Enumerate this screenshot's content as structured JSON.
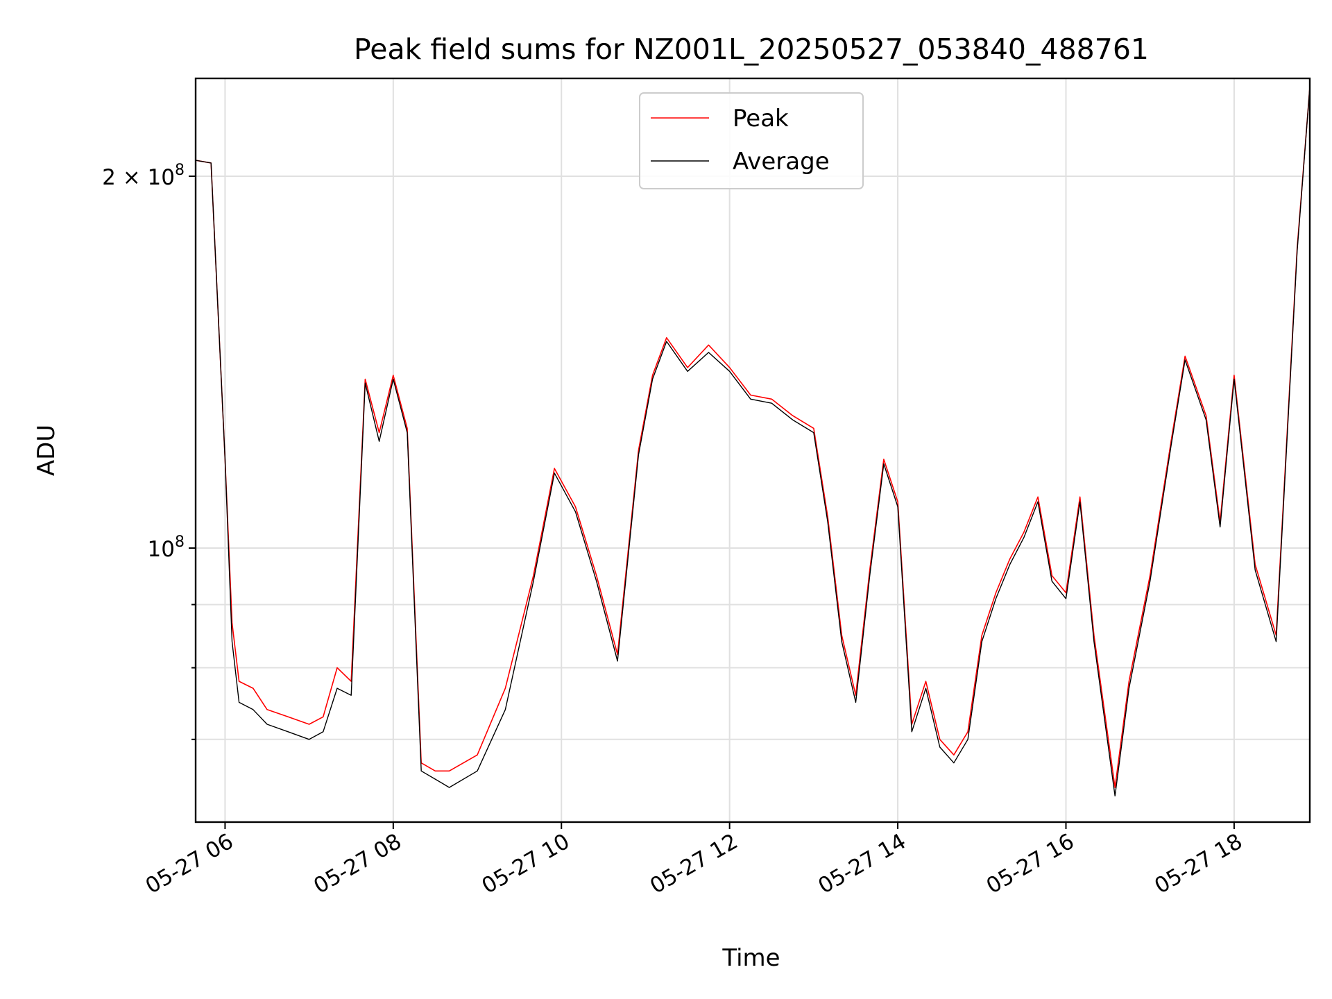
{
  "chart_data": {
    "type": "line",
    "title": "Peak field sums for NZ001L_20250527_053840_488761",
    "xlabel": "Time",
    "ylabel": "ADU",
    "y_scale": "log",
    "xlim": [
      "05-27 05:39",
      "05-27 18:54"
    ],
    "ylim": [
      60000000,
      240000000
    ],
    "x_ticks": [
      "05-27 06",
      "05-27 08",
      "05-27 10",
      "05-27 12",
      "05-27 14",
      "05-27 16",
      "05-27 18"
    ],
    "y_ticks": [
      {
        "value": 100000000,
        "label_base": "10",
        "label_exp": "8",
        "label_mult": ""
      },
      {
        "value": 200000000,
        "label_base": "10",
        "label_exp": "8",
        "label_mult": "2 × "
      }
    ],
    "y_minor_ticks": [
      70000000,
      80000000,
      90000000
    ],
    "grid": true,
    "legend_position": "top-center",
    "colors": {
      "peak": "#ff0000",
      "average": "#000000",
      "grid": "#e0e0e0"
    },
    "series": [
      {
        "name": "Peak",
        "color": "#ff0000",
        "x": [
          "05-27 05:39",
          "05-27 05:50",
          "05-27 06:00",
          "05-27 06:05",
          "05-27 06:10",
          "05-27 06:20",
          "05-27 06:30",
          "05-27 06:45",
          "05-27 07:00",
          "05-27 07:10",
          "05-27 07:20",
          "05-27 07:30",
          "05-27 07:40",
          "05-27 07:50",
          "05-27 08:00",
          "05-27 08:10",
          "05-27 08:20",
          "05-27 08:30",
          "05-27 08:40",
          "05-27 09:00",
          "05-27 09:20",
          "05-27 09:40",
          "05-27 09:55",
          "05-27 10:10",
          "05-27 10:25",
          "05-27 10:40",
          "05-27 10:55",
          "05-27 11:05",
          "05-27 11:15",
          "05-27 11:30",
          "05-27 11:45",
          "05-27 12:00",
          "05-27 12:15",
          "05-27 12:30",
          "05-27 12:45",
          "05-27 13:00",
          "05-27 13:10",
          "05-27 13:20",
          "05-27 13:30",
          "05-27 13:40",
          "05-27 13:50",
          "05-27 14:00",
          "05-27 14:10",
          "05-27 14:20",
          "05-27 14:30",
          "05-27 14:40",
          "05-27 14:50",
          "05-27 15:00",
          "05-27 15:10",
          "05-27 15:20",
          "05-27 15:30",
          "05-27 15:40",
          "05-27 15:50",
          "05-27 16:00",
          "05-27 16:10",
          "05-27 16:20",
          "05-27 16:35",
          "05-27 16:45",
          "05-27 17:00",
          "05-27 17:15",
          "05-27 17:25",
          "05-27 17:40",
          "05-27 17:50",
          "05-27 18:00",
          "05-27 18:15",
          "05-27 18:30",
          "05-27 18:45",
          "05-27 18:54"
        ],
        "y": [
          206000000,
          205000000,
          118000000,
          87000000,
          78000000,
          77000000,
          74000000,
          73000000,
          72000000,
          73000000,
          80000000,
          78000000,
          137000000,
          124000000,
          138000000,
          125000000,
          67000000,
          66000000,
          66000000,
          68000000,
          77000000,
          95000000,
          116000000,
          108000000,
          95000000,
          82000000,
          120000000,
          138000000,
          148000000,
          140000000,
          146000000,
          140000000,
          133000000,
          132000000,
          128000000,
          125000000,
          106000000,
          85000000,
          76000000,
          96000000,
          118000000,
          109000000,
          72000000,
          78000000,
          70000000,
          68000000,
          71000000,
          85000000,
          92000000,
          98000000,
          103000000,
          110000000,
          95000000,
          92000000,
          110000000,
          85000000,
          64000000,
          78000000,
          95000000,
          122000000,
          143000000,
          128000000,
          105000000,
          138000000,
          97000000,
          85000000,
          175000000,
          236000000
        ]
      },
      {
        "name": "Average",
        "color": "#000000",
        "x": [
          "05-27 05:39",
          "05-27 05:50",
          "05-27 06:00",
          "05-27 06:05",
          "05-27 06:10",
          "05-27 06:20",
          "05-27 06:30",
          "05-27 06:45",
          "05-27 07:00",
          "05-27 07:10",
          "05-27 07:20",
          "05-27 07:30",
          "05-27 07:40",
          "05-27 07:50",
          "05-27 08:00",
          "05-27 08:10",
          "05-27 08:20",
          "05-27 08:30",
          "05-27 08:40",
          "05-27 09:00",
          "05-27 09:20",
          "05-27 09:40",
          "05-27 09:55",
          "05-27 10:10",
          "05-27 10:25",
          "05-27 10:40",
          "05-27 10:55",
          "05-27 11:05",
          "05-27 11:15",
          "05-27 11:30",
          "05-27 11:45",
          "05-27 12:00",
          "05-27 12:15",
          "05-27 12:30",
          "05-27 12:45",
          "05-27 13:00",
          "05-27 13:10",
          "05-27 13:20",
          "05-27 13:30",
          "05-27 13:40",
          "05-27 13:50",
          "05-27 14:00",
          "05-27 14:10",
          "05-27 14:20",
          "05-27 14:30",
          "05-27 14:40",
          "05-27 14:50",
          "05-27 15:00",
          "05-27 15:10",
          "05-27 15:20",
          "05-27 15:30",
          "05-27 15:40",
          "05-27 15:50",
          "05-27 16:00",
          "05-27 16:10",
          "05-27 16:20",
          "05-27 16:35",
          "05-27 16:45",
          "05-27 17:00",
          "05-27 17:15",
          "05-27 17:25",
          "05-27 17:40",
          "05-27 17:50",
          "05-27 18:00",
          "05-27 18:15",
          "05-27 18:30",
          "05-27 18:45",
          "05-27 18:54"
        ],
        "y": [
          206000000,
          205000000,
          118000000,
          84000000,
          75000000,
          74000000,
          72000000,
          71000000,
          70000000,
          71000000,
          77000000,
          76000000,
          136000000,
          122000000,
          137000000,
          124000000,
          66000000,
          65000000,
          64000000,
          66000000,
          74000000,
          94000000,
          115000000,
          107000000,
          94000000,
          81000000,
          119000000,
          137000000,
          147000000,
          139000000,
          144000000,
          139000000,
          132000000,
          131000000,
          127000000,
          124000000,
          105000000,
          84000000,
          75000000,
          95000000,
          117000000,
          108000000,
          71000000,
          77000000,
          69000000,
          67000000,
          70000000,
          84000000,
          91000000,
          97000000,
          102000000,
          109000000,
          94000000,
          91000000,
          109000000,
          84000000,
          63000000,
          77000000,
          94000000,
          121000000,
          142000000,
          127000000,
          104000000,
          137000000,
          96000000,
          84000000,
          174000000,
          236000000
        ]
      }
    ]
  }
}
